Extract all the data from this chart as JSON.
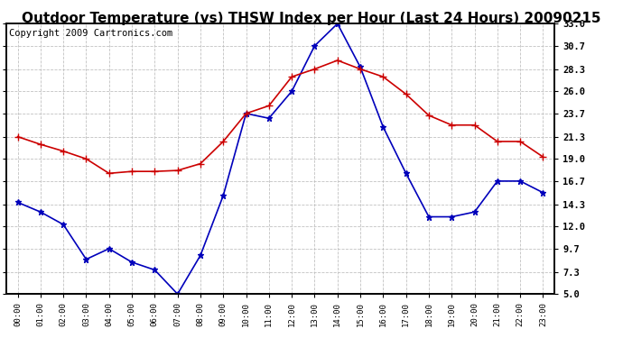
{
  "title": "Outdoor Temperature (vs) THSW Index per Hour (Last 24 Hours) 20090215",
  "copyright": "Copyright 2009 Cartronics.com",
  "hours": [
    "00:00",
    "01:00",
    "02:00",
    "03:00",
    "04:00",
    "05:00",
    "06:00",
    "07:00",
    "08:00",
    "09:00",
    "10:00",
    "11:00",
    "12:00",
    "13:00",
    "14:00",
    "15:00",
    "16:00",
    "17:00",
    "18:00",
    "19:00",
    "20:00",
    "21:00",
    "22:00",
    "23:00"
  ],
  "blue_data": [
    14.5,
    13.5,
    12.2,
    8.6,
    9.7,
    8.3,
    7.5,
    5.0,
    9.0,
    15.2,
    23.7,
    23.2,
    26.0,
    30.7,
    33.0,
    28.5,
    22.3,
    17.5,
    13.0,
    13.0,
    13.5,
    16.7,
    16.7,
    15.5
  ],
  "red_data": [
    21.3,
    20.5,
    19.8,
    19.0,
    17.5,
    17.7,
    17.7,
    17.8,
    18.5,
    20.8,
    23.7,
    24.5,
    27.5,
    28.3,
    29.2,
    28.3,
    27.5,
    25.7,
    23.5,
    22.5,
    22.5,
    20.8,
    20.8,
    19.2
  ],
  "ylim": [
    5.0,
    33.0
  ],
  "yticks": [
    5.0,
    7.3,
    9.7,
    12.0,
    14.3,
    16.7,
    19.0,
    21.3,
    23.7,
    26.0,
    28.3,
    30.7,
    33.0
  ],
  "blue_color": "#0000bb",
  "red_color": "#cc0000",
  "bg_color": "#ffffff",
  "grid_color": "#bbbbbb",
  "title_fontsize": 11,
  "copyright_fontsize": 7.5
}
